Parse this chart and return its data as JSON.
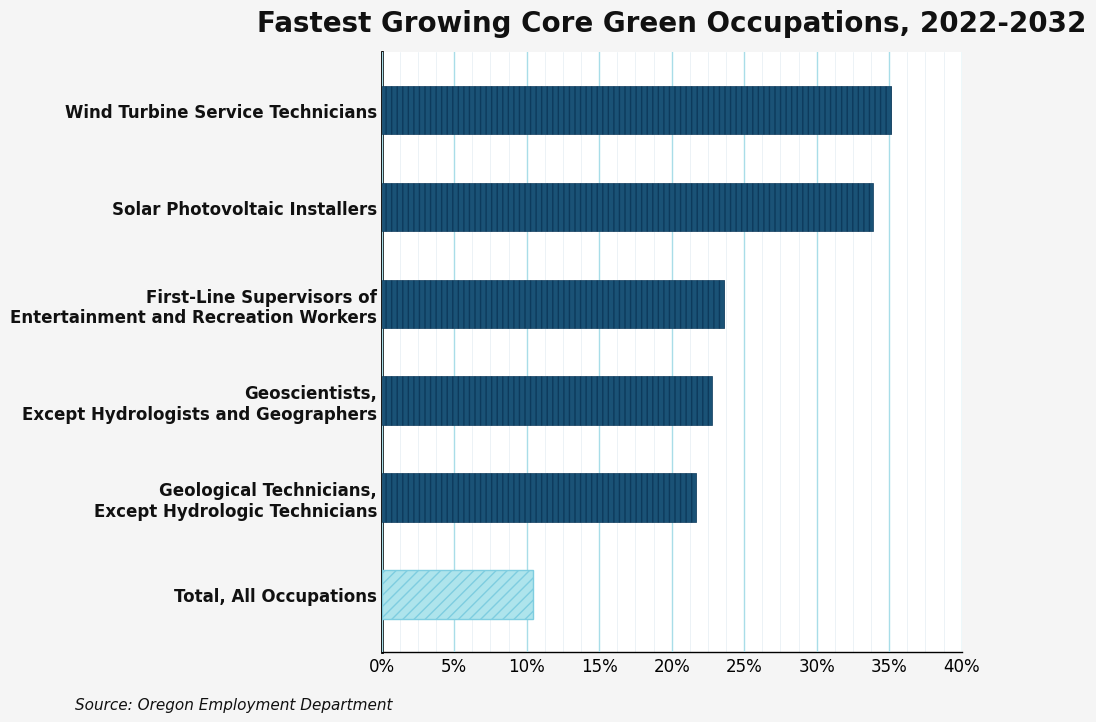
{
  "title": "Fastest Growing Core Green Occupations, 2022-2032",
  "categories": [
    "Wind Turbine Service Technicians",
    "Solar Photovoltaic Installers",
    "First-Line Supervisors of\nEntertainment and Recreation Workers",
    "Geoscientists,\nExcept Hydrologists and Geographers",
    "Geological Technicians,\nExcept Hydrologic Technicians",
    "Total, All Occupations"
  ],
  "values": [
    35.1,
    33.9,
    23.6,
    22.8,
    21.7,
    10.4
  ],
  "bar_color_solid": "#1a5276",
  "bar_color_hatch_face": "#aee4ec",
  "hatch_pattern": "///",
  "hatch_edgecolor": "#7ecde0",
  "xlim": [
    0,
    40
  ],
  "xticks": [
    0,
    5,
    10,
    15,
    20,
    25,
    30,
    35,
    40
  ],
  "source_text": "Source: Oregon Employment Department",
  "background_color": "#f5f5f5",
  "plot_bg_color": "#ffffff",
  "grid_color": "#a8dde8",
  "vertical_line_color": "#dde8f0",
  "title_fontsize": 20,
  "label_fontsize": 12,
  "tick_fontsize": 12,
  "source_fontsize": 11,
  "bar_height": 0.5
}
